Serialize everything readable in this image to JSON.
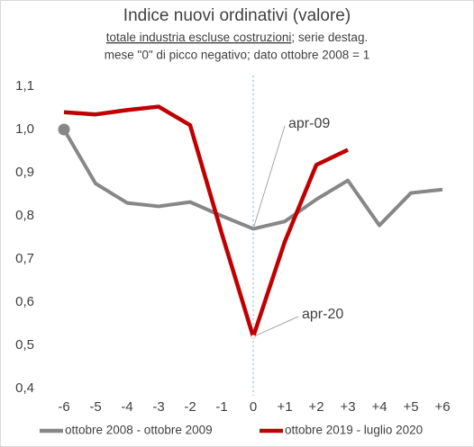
{
  "chart_data": {
    "type": "line",
    "title": "Indice nuovi ordinativi (valore)",
    "subtitle": [
      "totale industria escluse costruzioni",
      "; serie destag.",
      "mese \"0\" di picco negativo; dato ottobre 2008 = 1"
    ],
    "categories": [
      "-6",
      "-5",
      "-4",
      "-3",
      "-2",
      "-1",
      "0",
      "+1",
      "+2",
      "+3",
      "+4",
      "+5",
      "+6"
    ],
    "series": [
      {
        "name": "ottobre 2008 - ottobre 2009",
        "color": "#878787",
        "values": [
          1.0,
          0.875,
          0.83,
          0.822,
          0.832,
          0.8,
          0.77,
          0.787,
          0.838,
          0.882,
          0.778,
          0.853,
          0.861
        ]
      },
      {
        "name": "ottobre 2019 - luglio 2020",
        "color": "#c00000",
        "values": [
          1.04,
          1.035,
          1.045,
          1.053,
          1.01,
          0.76,
          0.52,
          0.74,
          0.918,
          0.953,
          null,
          null,
          null
        ]
      }
    ],
    "annotations": [
      {
        "text": "apr-09",
        "series": 0,
        "index": 6
      },
      {
        "text": "apr-20",
        "series": 1,
        "index": 6
      }
    ],
    "ylim": [
      0.4,
      1.1
    ],
    "yticks": [
      {
        "value": 0.4,
        "label": "0,4"
      },
      {
        "value": 0.5,
        "label": "0,5"
      },
      {
        "value": 0.6,
        "label": "0,6"
      },
      {
        "value": 0.7,
        "label": "0,7"
      },
      {
        "value": 0.8,
        "label": "0,8"
      },
      {
        "value": 0.9,
        "label": "0,9"
      },
      {
        "value": 1.0,
        "label": "1,0"
      },
      {
        "value": 1.1,
        "label": "1,1"
      }
    ],
    "legend": "bottom"
  }
}
